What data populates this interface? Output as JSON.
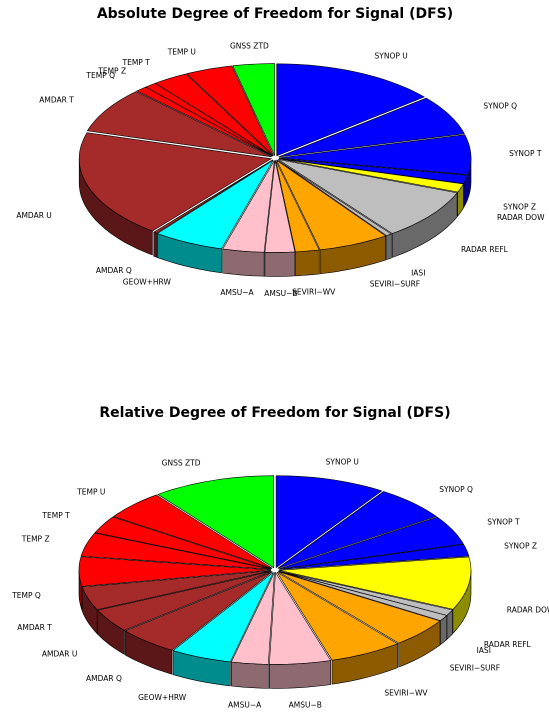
{
  "chart_data": [
    {
      "type": "pie",
      "title": "Absolute Degree of Freedom for Signal (DFS)",
      "categories": [
        "SYNOP U",
        "SYNOP Q",
        "SYNOP T",
        "SYNOP Z",
        "RADAR DOW",
        "RADAR REFL",
        "IASI",
        "SEVIRI−SURF",
        "SEVIRI−WV",
        "AMSU−B",
        "AMSU−A",
        "GEOW+HRW",
        "AMDAR Q",
        "AMDAR U",
        "AMDAR T",
        "TEMP Q",
        "TEMP Z",
        "TEMP T",
        "TEMP U",
        "GNSS ZTD"
      ],
      "values": [
        14,
        7,
        7,
        1.5,
        1.5,
        9,
        0.5,
        6,
        2,
        2.5,
        3.5,
        6,
        0.3,
        19,
        8,
        1,
        1,
        3,
        4,
        3.5
      ],
      "colors": [
        "#0000ff",
        "#0000ff",
        "#0000ff",
        "#0000ff",
        "#ffff00",
        "#bebebe",
        "#bebebe",
        "#ffa500",
        "#ffa500",
        "#ffc0cb",
        "#ffc0cb",
        "#00ffff",
        "#a52a2a",
        "#a52a2a",
        "#a52a2a",
        "#ff0000",
        "#ff0000",
        "#ff0000",
        "#ff0000",
        "#00ff00"
      ]
    },
    {
      "type": "pie",
      "title": "Relative Degree of Freedom for Signal (DFS)",
      "categories": [
        "SYNOP U",
        "SYNOP Q",
        "SYNOP T",
        "SYNOP Z",
        "RADAR DOW",
        "RADAR REFL",
        "IASI",
        "SEVIRI−SURF",
        "SEVIRI−WV",
        "AMSU−B",
        "AMSU−A",
        "GEOW+HRW",
        "AMDAR Q",
        "AMDAR U",
        "AMDAR T",
        "TEMP Q",
        "TEMP Z",
        "TEMP T",
        "TEMP U",
        "GNSS ZTD"
      ],
      "values": [
        9,
        6,
        5,
        2,
        9,
        1,
        1,
        5,
        6,
        5,
        3,
        5,
        5,
        4,
        4,
        5,
        4,
        3,
        5,
        10
      ],
      "colors": [
        "#0000ff",
        "#0000ff",
        "#0000ff",
        "#0000ff",
        "#ffff00",
        "#bebebe",
        "#bebebe",
        "#ffa500",
        "#ffa500",
        "#ffc0cb",
        "#ffc0cb",
        "#00ffff",
        "#a52a2a",
        "#a52a2a",
        "#a52a2a",
        "#ff0000",
        "#ff0000",
        "#ff0000",
        "#ff0000",
        "#00ff00"
      ]
    }
  ]
}
